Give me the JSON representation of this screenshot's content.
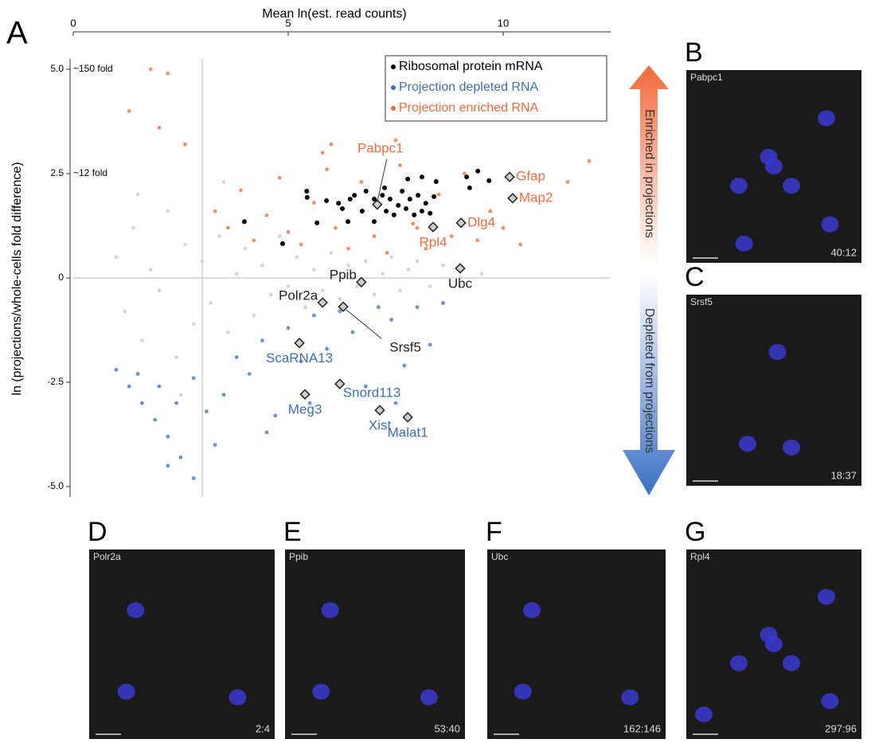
{
  "panel_label": "A",
  "chart_data": {
    "type": "scatter",
    "x_label": "Mean ln(est. read counts)",
    "y_label": "ln (projections/whole-cells fold difference)",
    "xlim": [
      0,
      12.5
    ],
    "ylim": [
      -5.25,
      5.25
    ],
    "xticks": [
      0,
      5,
      10
    ],
    "yticks": [
      {
        "value": 5,
        "label": "5.0"
      },
      {
        "value": 2.5,
        "label": "2.5"
      },
      0,
      {
        "value": -2.5,
        "label": "-2.5"
      },
      {
        "value": -5,
        "label": "-5.0"
      }
    ],
    "y_annotations": [
      {
        "value": 5,
        "label": "~150 fold"
      },
      {
        "value": 2.5,
        "label": "~12 fold"
      }
    ],
    "reference_lines": {
      "x": 3,
      "y": 0
    },
    "legend": "upper right",
    "series": [
      {
        "color": "#c8c8c8",
        "x": [
          1.0,
          1.2,
          1.4,
          1.6,
          1.8,
          2.0,
          2.2,
          2.4,
          2.6,
          2.8,
          3.0,
          3.2,
          3.4,
          3.6,
          3.8,
          4.0,
          4.2,
          4.4,
          4.6,
          4.8,
          5.0,
          5.2,
          5.4,
          5.6,
          5.8,
          6.0,
          6.2,
          6.4,
          6.6,
          6.8,
          7.0,
          7.2,
          7.4,
          7.6,
          7.8,
          8.0,
          8.3,
          8.6,
          9.0,
          9.5,
          2.5,
          1.5,
          3.5
        ],
        "values": [
          0.5,
          -0.8,
          1.2,
          -1.5,
          0.2,
          -0.3,
          1.6,
          -1.9,
          0.8,
          -1.1,
          0.4,
          -0.6,
          1.0,
          -1.3,
          0.1,
          0.7,
          -0.9,
          0.3,
          -0.4,
          1.0,
          -0.2,
          0.5,
          -0.7,
          0.2,
          -0.3,
          0.6,
          -0.5,
          0.3,
          -0.2,
          0.4,
          -0.4,
          0.1,
          0.5,
          -0.3,
          0.2,
          0.4,
          -0.2,
          0.3,
          0.0,
          0.1,
          -2.8,
          2.0,
          2.3
        ]
      },
      {
        "name": "Projection enriched RNA",
        "color": "#f26a3a",
        "x": [
          3.3,
          3.6,
          3.9,
          4.2,
          4.5,
          4.8,
          5.0,
          5.3,
          5.6,
          5.9,
          6.1,
          6.4,
          6.7,
          7.0,
          7.3,
          7.6,
          7.9,
          8.2,
          8.5,
          8.8,
          9.1,
          9.4,
          9.7,
          10.0,
          10.4,
          11.5,
          12.0,
          1.8,
          2.2,
          1.3,
          2.6,
          2.0,
          6.0,
          7.5,
          5.8,
          8.0
        ],
        "values": [
          1.6,
          1.2,
          2.1,
          0.9,
          1.5,
          2.4,
          1.1,
          0.8,
          1.8,
          2.6,
          1.2,
          0.7,
          2.3,
          1.0,
          0.6,
          2.7,
          1.3,
          0.7,
          2.0,
          1.0,
          2.5,
          0.9,
          1.6,
          1.2,
          0.8,
          2.3,
          2.8,
          5.0,
          4.9,
          4.0,
          3.2,
          3.6,
          3.2,
          3.3,
          3.0,
          1.2
        ]
      },
      {
        "name": "Projection depleted RNA",
        "color": "#3a6fc4",
        "x": [
          1.0,
          1.3,
          1.6,
          1.9,
          2.2,
          2.5,
          2.8,
          1.5,
          2.0,
          2.4,
          2.8,
          3.1,
          3.5,
          3.8,
          4.1,
          4.4,
          4.7,
          5.0,
          5.3,
          5.6,
          5.9,
          6.2,
          6.5,
          6.8,
          7.1,
          7.4,
          7.7,
          8.0,
          8.3,
          8.6,
          5.5,
          4.5,
          7.5,
          3.3,
          2.2
        ],
        "values": [
          -2.2,
          -2.6,
          -3.0,
          -3.4,
          -3.8,
          -4.3,
          -4.8,
          -2.3,
          -2.6,
          -3.0,
          -2.4,
          -3.2,
          -2.8,
          -1.9,
          -2.3,
          -1.5,
          -3.3,
          -1.2,
          -2.0,
          -0.9,
          -1.7,
          -0.8,
          -1.3,
          -2.6,
          -0.7,
          -1.0,
          -2.1,
          -0.7,
          -1.6,
          -0.6,
          -3.0,
          -3.7,
          -3.0,
          -4.0,
          -4.5
        ]
      },
      {
        "name": "Ribosomal protein mRNA",
        "color": "#000000",
        "x": [
          3.98,
          4.87,
          5.43,
          5.44,
          5.67,
          5.89,
          6.17,
          6.26,
          6.44,
          6.54,
          6.72,
          6.81,
          7.0,
          7.19,
          7.28,
          7.37,
          7.46,
          7.56,
          7.65,
          7.74,
          7.83,
          7.93,
          8.02,
          8.11,
          8.2,
          8.3,
          8.39,
          7.78,
          8.11,
          8.44,
          9.15,
          9.41,
          9.67,
          9.22,
          7.24,
          7.0,
          6.39
        ],
        "values": [
          1.35,
          0.82,
          2.08,
          1.93,
          1.32,
          1.85,
          1.79,
          1.66,
          1.89,
          1.98,
          1.6,
          2.08,
          1.89,
          1.98,
          1.6,
          1.89,
          1.51,
          1.74,
          2.08,
          1.66,
          1.89,
          1.51,
          1.98,
          1.6,
          1.79,
          1.55,
          1.95,
          2.37,
          2.42,
          2.31,
          2.42,
          2.56,
          2.33,
          2.16,
          2.16,
          1.35,
          1.35
        ]
      }
    ],
    "genes": [
      {
        "label": "Pabpc1",
        "x": 7.07,
        "y": 1.76,
        "color": "#f26a3a"
      },
      {
        "label": "Gfap",
        "x": 10.15,
        "y": 2.42,
        "color": "#f26a3a"
      },
      {
        "label": "Map2",
        "x": 10.22,
        "y": 1.91,
        "color": "#f26a3a"
      },
      {
        "label": "Dlg4",
        "x": 9.02,
        "y": 1.32,
        "color": "#f26a3a"
      },
      {
        "label": "Rpl4",
        "x": 8.37,
        "y": 1.22,
        "color": "#f26a3a"
      },
      {
        "label": "Ubc",
        "x": 9.0,
        "y": 0.23,
        "color": "#222222"
      },
      {
        "label": "Ppib",
        "x": 6.7,
        "y": -0.1,
        "color": "#222222"
      },
      {
        "label": "Polr2a",
        "x": 5.8,
        "y": -0.59,
        "color": "#222222"
      },
      {
        "label": "Srsf5",
        "x": 6.28,
        "y": -0.69,
        "color": "#222222"
      },
      {
        "label": "ScaRNA13",
        "x": 5.26,
        "y": -1.56,
        "color": "#3a6fc4"
      },
      {
        "label": "Snord113",
        "x": 6.2,
        "y": -2.54,
        "color": "#3a6fc4"
      },
      {
        "label": "Meg3",
        "x": 5.39,
        "y": -2.79,
        "color": "#3a6fc4"
      },
      {
        "label": "Xist",
        "x": 7.13,
        "y": -3.17,
        "color": "#3a6fc4"
      },
      {
        "label": "Malat1",
        "x": 7.78,
        "y": -3.34,
        "color": "#3a6fc4"
      }
    ]
  },
  "arrows": {
    "enriched": "Enriched in projections",
    "depleted": "Depleted from projections"
  },
  "image_panels": [
    {
      "letter": "B",
      "gene": "Pabpc1",
      "ratio": "40:12"
    },
    {
      "letter": "C",
      "gene": "Srsf5",
      "ratio": "18:37"
    },
    {
      "letter": "D",
      "gene": "Polr2a",
      "ratio": "2:4"
    },
    {
      "letter": "E",
      "gene": "Ppib",
      "ratio": "53:40"
    },
    {
      "letter": "F",
      "gene": "Ubc",
      "ratio": "162:146"
    },
    {
      "letter": "G",
      "gene": "Rpl4",
      "ratio": "297:96"
    }
  ]
}
